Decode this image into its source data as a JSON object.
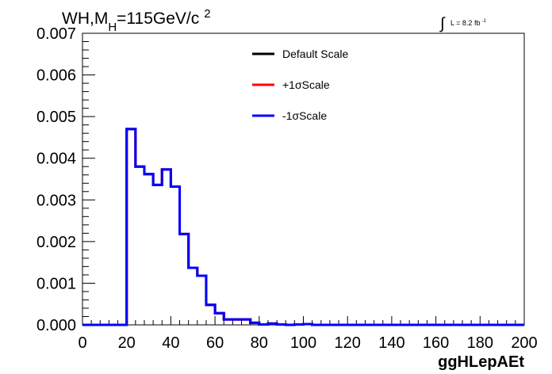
{
  "chart_data": {
    "type": "line",
    "style": "histogram-step",
    "title": "WH,M",
    "title_sub": "H",
    "title_rest": "=115GeV/c",
    "title_sup": "2",
    "lumi": {
      "integral_sign": "∫",
      "text": "L = 8.2 fb",
      "exponent": "-1"
    },
    "xlabel": "ggHLepAEt",
    "ylabel": "",
    "xlim": [
      0,
      200
    ],
    "ylim": [
      0,
      0.007
    ],
    "grid": false,
    "legend_placement": "top-center",
    "x_ticks": [
      0,
      20,
      40,
      60,
      80,
      100,
      120,
      140,
      160,
      180,
      200
    ],
    "x_tick_labels": [
      "0",
      "20",
      "40",
      "60",
      "80",
      "100",
      "120",
      "140",
      "160",
      "180",
      "200"
    ],
    "y_ticks": [
      0,
      0.001,
      0.002,
      0.003,
      0.004,
      0.005,
      0.006,
      0.007
    ],
    "y_tick_labels": [
      "0.000",
      "0.001",
      "0.002",
      "0.003",
      "0.004",
      "0.005",
      "0.006",
      "0.007"
    ],
    "bin_width": 4,
    "bin_edges_start": 0,
    "values": [
      0,
      0,
      0,
      0,
      0,
      0.0047,
      0.0038,
      0.00362,
      0.00336,
      0.00373,
      0.00332,
      0.00218,
      0.00137,
      0.00118,
      0.00048,
      0.00028,
      0.00013,
      0.00013,
      0.00013,
      5e-05,
      1e-05,
      3e-05,
      1e-05,
      0,
      1e-05,
      2e-05,
      0,
      0,
      0,
      0,
      0,
      0,
      0,
      0,
      0,
      0,
      0,
      0,
      0,
      0,
      0,
      0,
      0,
      0,
      0,
      0,
      0,
      0,
      0,
      0
    ],
    "series": [
      {
        "name": "Default Scale",
        "color": "#000000"
      },
      {
        "name": "+1σScale",
        "color": "#ff0000"
      },
      {
        "name": "-1σScale",
        "color": "#0000ff"
      }
    ]
  }
}
